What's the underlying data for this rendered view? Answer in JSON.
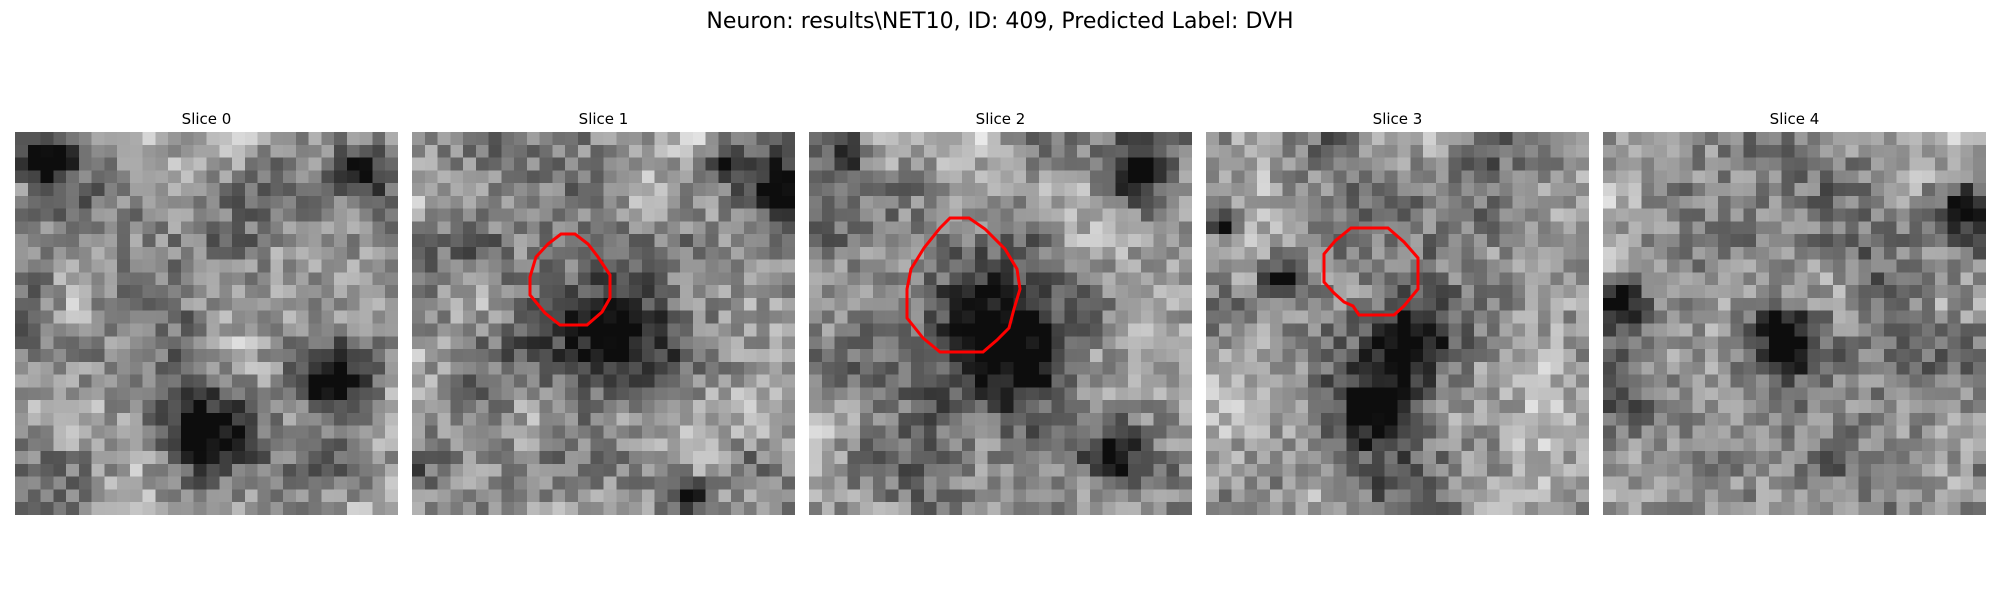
{
  "figure": {
    "title": "Neuron: results\\NET10, ID: 409, Predicted Label: DVH"
  },
  "slices": [
    {
      "title": "Slice 0",
      "has_contour": false,
      "dark_blobs": [
        [
          0.5,
          0.8,
          0.14
        ],
        [
          0.82,
          0.65,
          0.12
        ],
        [
          0.9,
          0.1,
          0.08
        ],
        [
          0.08,
          0.08,
          0.08
        ]
      ]
    },
    {
      "title": "Slice 1",
      "has_contour": true,
      "dark_blobs": [
        [
          0.5,
          0.52,
          0.17
        ],
        [
          0.72,
          0.95,
          0.07
        ],
        [
          0.95,
          0.15,
          0.1
        ],
        [
          0.82,
          0.08,
          0.06
        ]
      ]
    },
    {
      "title": "Slice 2",
      "has_contour": true,
      "dark_blobs": [
        [
          0.52,
          0.53,
          0.22
        ],
        [
          0.78,
          0.85,
          0.1
        ],
        [
          0.85,
          0.12,
          0.1
        ],
        [
          0.1,
          0.05,
          0.06
        ]
      ]
    },
    {
      "title": "Slice 3",
      "has_contour": true,
      "dark_blobs": [
        [
          0.45,
          0.72,
          0.13
        ],
        [
          0.52,
          0.55,
          0.14
        ],
        [
          0.2,
          0.38,
          0.07
        ],
        [
          0.05,
          0.25,
          0.06
        ]
      ]
    },
    {
      "title": "Slice 4",
      "has_contour": false,
      "dark_blobs": [
        [
          0.48,
          0.52,
          0.12
        ],
        [
          0.95,
          0.2,
          0.12
        ],
        [
          0.05,
          0.45,
          0.07
        ]
      ]
    }
  ],
  "colors": {
    "contour": "#ff0000",
    "background": "#ffffff"
  }
}
